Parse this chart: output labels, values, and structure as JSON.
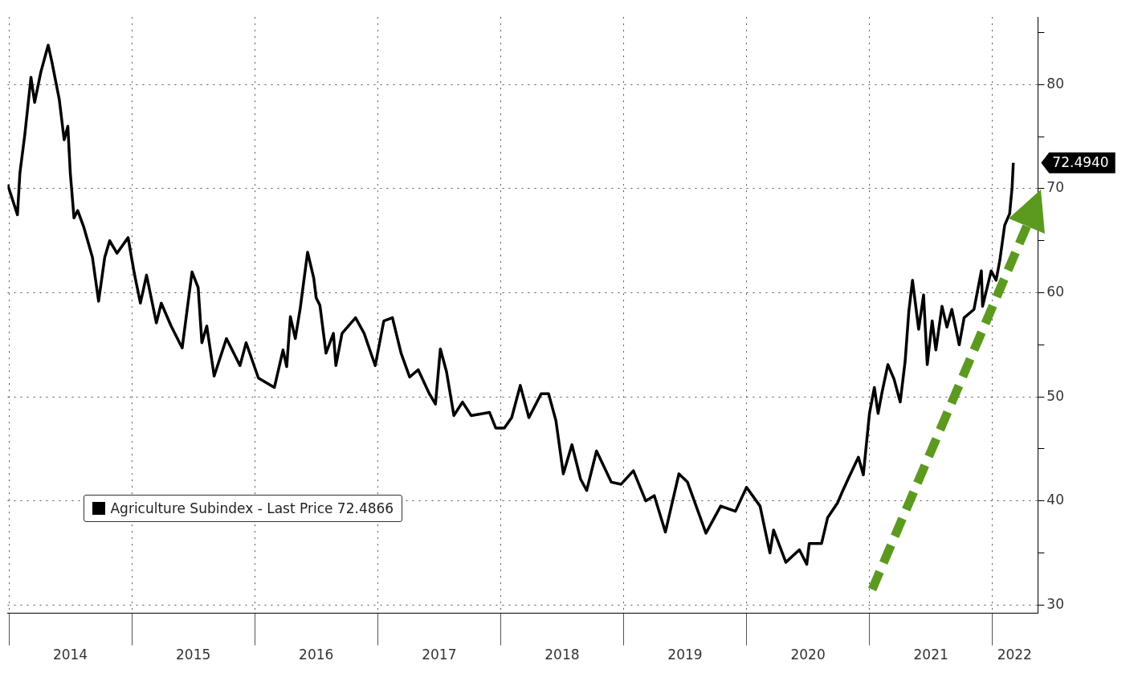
{
  "chart_data": {
    "type": "line",
    "x": [
      2013.99,
      2014.07,
      2014.09,
      2014.13,
      2014.18,
      2014.21,
      2014.26,
      2014.32,
      2014.35,
      2014.41,
      2014.45,
      2014.48,
      2014.5,
      2014.53,
      2014.56,
      2014.61,
      2014.68,
      2014.73,
      2014.78,
      2014.82,
      2014.88,
      2014.97,
      2015.02,
      2015.07,
      2015.12,
      2015.2,
      2015.24,
      2015.32,
      2015.41,
      2015.49,
      2015.54,
      2015.57,
      2015.61,
      2015.67,
      2015.77,
      2015.88,
      2015.93,
      2016.03,
      2016.16,
      2016.23,
      2016.26,
      2016.29,
      2016.33,
      2016.37,
      2016.43,
      2016.48,
      2016.5,
      2016.53,
      2016.58,
      2016.64,
      2016.66,
      2016.71,
      2016.82,
      2016.89,
      2016.98,
      2017.05,
      2017.12,
      2017.19,
      2017.26,
      2017.33,
      2017.42,
      2017.47,
      2017.51,
      2017.56,
      2017.62,
      2017.69,
      2017.76,
      2017.91,
      2017.96,
      2018.03,
      2018.09,
      2018.16,
      2018.23,
      2018.33,
      2018.39,
      2018.45,
      2018.51,
      2018.58,
      2018.65,
      2018.7,
      2018.78,
      2018.9,
      2018.98,
      2019.08,
      2019.18,
      2019.25,
      2019.34,
      2019.45,
      2019.52,
      2019.67,
      2019.79,
      2019.91,
      2020.0,
      2020.11,
      2020.19,
      2020.22,
      2020.32,
      2020.43,
      2020.49,
      2020.51,
      2020.61,
      2020.66,
      2020.74,
      2020.78,
      2020.83,
      2020.91,
      2020.95,
      2021.0,
      2021.04,
      2021.07,
      2021.1,
      2021.15,
      2021.2,
      2021.25,
      2021.29,
      2021.32,
      2021.35,
      2021.4,
      2021.44,
      2021.47,
      2021.51,
      2021.54,
      2021.59,
      2021.63,
      2021.67,
      2021.73,
      2021.77,
      2021.85,
      2021.91,
      2021.92,
      2021.99,
      2022.03,
      2022.06,
      2022.1,
      2022.14,
      2022.16,
      2022.17
    ],
    "series": [
      {
        "name": "Agriculture Subindex - Last Price 72.4866",
        "color": "#000000",
        "values": [
          70.4,
          67.5,
          71.5,
          75.2,
          80.7,
          78.3,
          81.2,
          83.8,
          82.2,
          78.6,
          74.7,
          76.0,
          71.5,
          67.2,
          67.9,
          66.3,
          63.4,
          59.2,
          63.4,
          65.0,
          63.8,
          65.3,
          61.9,
          59.0,
          61.7,
          57.1,
          59.0,
          56.8,
          54.7,
          62.0,
          60.5,
          55.2,
          56.8,
          52.0,
          55.6,
          53.0,
          55.2,
          51.8,
          50.9,
          54.5,
          52.9,
          57.7,
          55.6,
          58.5,
          63.9,
          61.4,
          59.5,
          58.8,
          54.2,
          56.1,
          53.0,
          56.1,
          57.6,
          56.1,
          53.0,
          57.3,
          57.6,
          54.2,
          51.9,
          52.6,
          50.3,
          49.3,
          54.6,
          52.4,
          48.2,
          49.5,
          48.2,
          48.5,
          47.0,
          47.0,
          48.0,
          51.1,
          48.0,
          50.3,
          50.3,
          47.7,
          42.6,
          45.4,
          42.1,
          41.0,
          44.8,
          41.8,
          41.6,
          42.9,
          40.0,
          40.5,
          37.0,
          42.6,
          41.8,
          36.9,
          39.5,
          39.0,
          41.3,
          39.5,
          35.0,
          37.2,
          34.1,
          35.3,
          33.9,
          35.9,
          35.9,
          38.4,
          39.8,
          40.9,
          42.2,
          44.2,
          42.5,
          48.4,
          50.9,
          48.4,
          50.3,
          53.1,
          51.7,
          49.5,
          53.4,
          58.2,
          61.2,
          56.5,
          59.8,
          53.1,
          57.3,
          54.5,
          58.7,
          56.7,
          58.4,
          55.0,
          57.6,
          58.4,
          62.1,
          58.7,
          62.1,
          61.2,
          63.1,
          66.5,
          67.6,
          70.1,
          72.49
        ]
      }
    ],
    "xlim": [
      2013.99,
      2022.37
    ],
    "xticks": [
      {
        "value": 2014,
        "label": null
      },
      {
        "value": 2014.5,
        "label": "2014"
      },
      {
        "value": 2015,
        "label": null
      },
      {
        "value": 2015.5,
        "label": "2015"
      },
      {
        "value": 2016,
        "label": null
      },
      {
        "value": 2016.5,
        "label": "2016"
      },
      {
        "value": 2017,
        "label": null
      },
      {
        "value": 2017.5,
        "label": "2017"
      },
      {
        "value": 2018,
        "label": null
      },
      {
        "value": 2018.5,
        "label": "2018"
      },
      {
        "value": 2019,
        "label": null
      },
      {
        "value": 2019.5,
        "label": "2019"
      },
      {
        "value": 2020,
        "label": null
      },
      {
        "value": 2020.5,
        "label": "2020"
      },
      {
        "value": 2021,
        "label": null
      },
      {
        "value": 2021.5,
        "label": "2021"
      },
      {
        "value": 2022,
        "label": null
      },
      {
        "value": 2022.18,
        "label": "2022"
      }
    ],
    "ylim": [
      29.2,
      86.5
    ],
    "yticks": [
      30,
      {
        "value": 35,
        "label": null
      },
      40,
      {
        "value": 45,
        "label": null
      },
      50,
      {
        "value": 55,
        "label": null
      },
      60,
      {
        "value": 65,
        "label": null
      },
      70,
      {
        "value": 75,
        "label": null
      },
      80,
      {
        "value": 85,
        "label": null
      }
    ],
    "annotations": [
      "72.4940"
    ],
    "grid": true,
    "legend": "bottom left",
    "marker": "none",
    "line_style": "solid"
  }
}
